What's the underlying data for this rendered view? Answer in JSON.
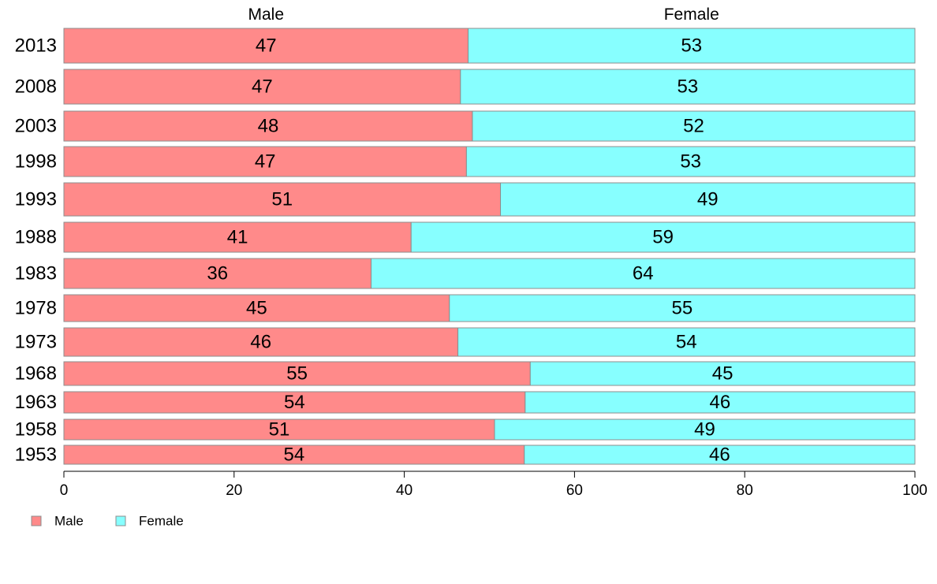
{
  "chart_data": {
    "type": "bar",
    "orientation": "horizontal",
    "stacked": true,
    "categories": [
      "2013",
      "2008",
      "2003",
      "1998",
      "1993",
      "1988",
      "1983",
      "1978",
      "1973",
      "1968",
      "1963",
      "1958",
      "1953"
    ],
    "series": [
      {
        "name": "Male",
        "color": "#ff8a8a",
        "values": [
          47.5,
          46.6,
          48.0,
          47.3,
          51.3,
          40.8,
          36.1,
          45.3,
          46.3,
          54.8,
          54.2,
          50.6,
          54.1
        ],
        "labels": [
          "47",
          "47",
          "48",
          "47",
          "51",
          "41",
          "36",
          "45",
          "46",
          "55",
          "54",
          "51",
          "54"
        ]
      },
      {
        "name": "Female",
        "color": "#87ffff",
        "values": [
          52.5,
          53.4,
          52.0,
          52.7,
          48.7,
          59.2,
          63.9,
          54.7,
          53.7,
          45.2,
          45.8,
          49.4,
          45.9
        ],
        "labels": [
          "53",
          "53",
          "52",
          "53",
          "49",
          "59",
          "64",
          "55",
          "54",
          "45",
          "46",
          "49",
          "46"
        ]
      }
    ],
    "column_headers": [
      "Male",
      "Female"
    ],
    "x_ticks": [
      "0",
      "20",
      "40",
      "60",
      "80",
      "100"
    ],
    "xlim": [
      0,
      100
    ],
    "xlabel": "",
    "ylabel": "",
    "grid": false,
    "legend_position": "bottom-left",
    "bar_border_color": "#8c8c8c"
  }
}
